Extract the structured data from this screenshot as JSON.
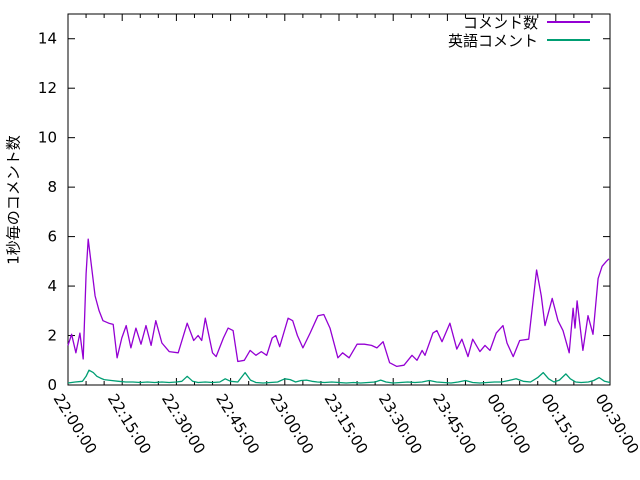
{
  "chart_data": {
    "type": "line",
    "title": "",
    "xlabel": "",
    "ylabel": "1秒毎のコメント数",
    "grid": false,
    "legend_position": "top-right-inside",
    "x_axis": {
      "unit": "time HH:MM:SS",
      "range_minutes": [
        0,
        150
      ],
      "tick_minutes": [
        0,
        15,
        30,
        45,
        60,
        75,
        90,
        105,
        120,
        135,
        150
      ],
      "tick_labels": [
        "22:00:00",
        "22:15:00",
        "22:30:00",
        "22:45:00",
        "23:00:00",
        "23:15:00",
        "23:30:00",
        "23:45:00",
        "00:00:00",
        "00:15:00",
        "00:30:00"
      ],
      "minor_tick_interval_minutes": 5
    },
    "y_axis": {
      "range": [
        0,
        15
      ],
      "tick_values": [
        0,
        2,
        4,
        6,
        8,
        10,
        12,
        14
      ]
    },
    "series": [
      {
        "id": "comments",
        "name": "コメント数",
        "color": "#9400d3",
        "points": [
          [
            0,
            1.6
          ],
          [
            1,
            2.05
          ],
          [
            2.2,
            1.3
          ],
          [
            3.3,
            2.1
          ],
          [
            4.2,
            1.05
          ],
          [
            5,
            4.5
          ],
          [
            5.6,
            5.9
          ],
          [
            6.6,
            4.7
          ],
          [
            7.5,
            3.6
          ],
          [
            8.6,
            3.0
          ],
          [
            9.7,
            2.6
          ],
          [
            11.3,
            2.5
          ],
          [
            12.5,
            2.45
          ],
          [
            13.6,
            1.1
          ],
          [
            14.9,
            1.9
          ],
          [
            16.1,
            2.4
          ],
          [
            17.4,
            1.5
          ],
          [
            18.8,
            2.3
          ],
          [
            20.2,
            1.65
          ],
          [
            21.6,
            2.4
          ],
          [
            23,
            1.6
          ],
          [
            24.3,
            2.6
          ],
          [
            26,
            1.7
          ],
          [
            28,
            1.35
          ],
          [
            30.5,
            1.3
          ],
          [
            33,
            2.5
          ],
          [
            34.8,
            1.8
          ],
          [
            36,
            2.0
          ],
          [
            37,
            1.8
          ],
          [
            38,
            2.7
          ],
          [
            40,
            1.3
          ],
          [
            41,
            1.15
          ],
          [
            43,
            1.9
          ],
          [
            44.3,
            2.3
          ],
          [
            45.7,
            2.2
          ],
          [
            47,
            0.95
          ],
          [
            48.8,
            1.0
          ],
          [
            50.4,
            1.4
          ],
          [
            52,
            1.2
          ],
          [
            53.5,
            1.35
          ],
          [
            55,
            1.2
          ],
          [
            56.5,
            1.9
          ],
          [
            57.5,
            2.0
          ],
          [
            58.6,
            1.55
          ],
          [
            60.9,
            2.7
          ],
          [
            62.2,
            2.6
          ],
          [
            63.5,
            2.0
          ],
          [
            65,
            1.5
          ],
          [
            67,
            2.1
          ],
          [
            69.2,
            2.8
          ],
          [
            70.8,
            2.85
          ],
          [
            72.5,
            2.3
          ],
          [
            74.7,
            1.1
          ],
          [
            76,
            1.3
          ],
          [
            77.8,
            1.1
          ],
          [
            80,
            1.65
          ],
          [
            82,
            1.65
          ],
          [
            84,
            1.6
          ],
          [
            85.5,
            1.5
          ],
          [
            87.2,
            1.75
          ],
          [
            89,
            0.9
          ],
          [
            91,
            0.75
          ],
          [
            93,
            0.8
          ],
          [
            95.2,
            1.2
          ],
          [
            96.6,
            1.0
          ],
          [
            98,
            1.4
          ],
          [
            98.8,
            1.2
          ],
          [
            101,
            2.1
          ],
          [
            102.1,
            2.2
          ],
          [
            103.5,
            1.75
          ],
          [
            105.7,
            2.5
          ],
          [
            107.6,
            1.45
          ],
          [
            109,
            1.85
          ],
          [
            110.7,
            1.15
          ],
          [
            112,
            1.85
          ],
          [
            114,
            1.35
          ],
          [
            115.4,
            1.6
          ],
          [
            116.8,
            1.4
          ],
          [
            118.5,
            2.1
          ],
          [
            120.4,
            2.4
          ],
          [
            121.5,
            1.7
          ],
          [
            123.2,
            1.15
          ],
          [
            125,
            1.8
          ],
          [
            127.5,
            1.85
          ],
          [
            129.7,
            4.65
          ],
          [
            131,
            3.6
          ],
          [
            132,
            2.4
          ],
          [
            134,
            3.5
          ],
          [
            135.6,
            2.6
          ],
          [
            137,
            2.2
          ],
          [
            138.7,
            1.3
          ],
          [
            139.8,
            3.1
          ],
          [
            140.3,
            2.3
          ],
          [
            140.9,
            3.4
          ],
          [
            142.5,
            1.4
          ],
          [
            143.9,
            2.8
          ],
          [
            145.3,
            2.05
          ],
          [
            146.7,
            4.3
          ],
          [
            147.8,
            4.8
          ],
          [
            149,
            5.0
          ],
          [
            149.7,
            5.1
          ]
        ]
      },
      {
        "id": "english-comments",
        "name": "英語コメント",
        "color": "#009e73",
        "points": [
          [
            0,
            0.08
          ],
          [
            2,
            0.12
          ],
          [
            4,
            0.15
          ],
          [
            5,
            0.35
          ],
          [
            5.8,
            0.6
          ],
          [
            7,
            0.5
          ],
          [
            8,
            0.35
          ],
          [
            9,
            0.28
          ],
          [
            10,
            0.22
          ],
          [
            12,
            0.18
          ],
          [
            14,
            0.15
          ],
          [
            16,
            0.12
          ],
          [
            18,
            0.12
          ],
          [
            20,
            0.1
          ],
          [
            22,
            0.12
          ],
          [
            24,
            0.1
          ],
          [
            26,
            0.12
          ],
          [
            28,
            0.1
          ],
          [
            30,
            0.12
          ],
          [
            31.5,
            0.15
          ],
          [
            33,
            0.35
          ],
          [
            34.5,
            0.15
          ],
          [
            36,
            0.1
          ],
          [
            38,
            0.12
          ],
          [
            40,
            0.1
          ],
          [
            42,
            0.12
          ],
          [
            43.5,
            0.25
          ],
          [
            45,
            0.15
          ],
          [
            47,
            0.12
          ],
          [
            49,
            0.5
          ],
          [
            50.5,
            0.2
          ],
          [
            52,
            0.1
          ],
          [
            54,
            0.08
          ],
          [
            56,
            0.1
          ],
          [
            58,
            0.12
          ],
          [
            60,
            0.25
          ],
          [
            61.5,
            0.22
          ],
          [
            63,
            0.12
          ],
          [
            64.5,
            0.18
          ],
          [
            66,
            0.2
          ],
          [
            67.5,
            0.15
          ],
          [
            69,
            0.12
          ],
          [
            71,
            0.1
          ],
          [
            73,
            0.12
          ],
          [
            75,
            0.1
          ],
          [
            77,
            0.08
          ],
          [
            79,
            0.1
          ],
          [
            81,
            0.08
          ],
          [
            83,
            0.1
          ],
          [
            85,
            0.12
          ],
          [
            86.5,
            0.2
          ],
          [
            88,
            0.12
          ],
          [
            90,
            0.08
          ],
          [
            92,
            0.1
          ],
          [
            94,
            0.12
          ],
          [
            96,
            0.1
          ],
          [
            98,
            0.12
          ],
          [
            100,
            0.18
          ],
          [
            102,
            0.12
          ],
          [
            104,
            0.1
          ],
          [
            106,
            0.08
          ],
          [
            108,
            0.12
          ],
          [
            110,
            0.18
          ],
          [
            112,
            0.1
          ],
          [
            114,
            0.08
          ],
          [
            116,
            0.1
          ],
          [
            118,
            0.12
          ],
          [
            120,
            0.12
          ],
          [
            122,
            0.18
          ],
          [
            124,
            0.25
          ],
          [
            126,
            0.15
          ],
          [
            128,
            0.12
          ],
          [
            130,
            0.3
          ],
          [
            131.5,
            0.5
          ],
          [
            133,
            0.25
          ],
          [
            134.5,
            0.12
          ],
          [
            136,
            0.2
          ],
          [
            137.8,
            0.45
          ],
          [
            139,
            0.25
          ],
          [
            140.5,
            0.12
          ],
          [
            142,
            0.1
          ],
          [
            144,
            0.12
          ],
          [
            145.5,
            0.18
          ],
          [
            147,
            0.3
          ],
          [
            148.5,
            0.15
          ],
          [
            150,
            0.1
          ]
        ]
      }
    ]
  },
  "colors": {
    "background": "#ffffff",
    "axis": "#000000",
    "text": "#000000"
  }
}
